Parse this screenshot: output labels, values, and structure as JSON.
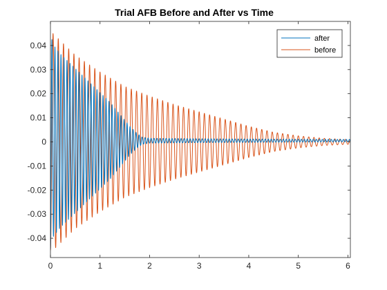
{
  "chart_data": {
    "type": "line",
    "title": "Trial AFB Before and After vs Time",
    "xlabel": "",
    "ylabel": "",
    "xlim": [
      0,
      6.05
    ],
    "ylim": [
      -0.048,
      0.05
    ],
    "x_ticks": [
      0,
      1,
      2,
      3,
      4,
      5,
      6
    ],
    "y_ticks": [
      -0.04,
      -0.03,
      -0.02,
      -0.01,
      0,
      0.01,
      0.02,
      0.03,
      0.04
    ],
    "x_tick_labels": [
      "0",
      "1",
      "2",
      "3",
      "4",
      "5",
      "6"
    ],
    "y_tick_labels": [
      "-0.04",
      "-0.03",
      "-0.02",
      "-0.01",
      "0",
      "0.01",
      "0.02",
      "0.03",
      "0.04"
    ],
    "grid": false,
    "legend_position": "top-right",
    "series": [
      {
        "name": "after",
        "color": "#0072BD",
        "description_points": {
          "t": [
            0,
            0.05,
            0.2,
            0.4,
            0.6,
            0.8,
            1.0,
            1.2,
            1.4,
            1.6,
            1.75,
            1.85,
            2.0,
            3.0,
            4.0,
            5.0,
            6.0
          ],
          "envelope": [
            -0.045,
            0.04,
            0.036,
            0.032,
            0.028,
            0.024,
            0.02,
            0.016,
            0.011,
            0.006,
            0.003,
            0.0015,
            0.001,
            0.0008,
            0.0007,
            0.0006,
            0.0005
          ]
        },
        "frequency_hz": 16.5,
        "offset": 0.0005
      },
      {
        "name": "before",
        "color": "#D95319",
        "description_points": {
          "t": [
            0,
            0.05,
            0.5,
            1.0,
            1.5,
            2.0,
            2.5,
            3.0,
            3.5,
            4.0,
            4.5,
            5.0,
            5.5,
            6.0
          ],
          "envelope": [
            -0.045,
            0.045,
            0.036,
            0.029,
            0.023,
            0.019,
            0.0155,
            0.0125,
            0.0095,
            0.0065,
            0.004,
            0.0025,
            0.0015,
            0.001
          ]
        },
        "frequency_hz": 9.5,
        "offset": 0.0
      }
    ]
  }
}
